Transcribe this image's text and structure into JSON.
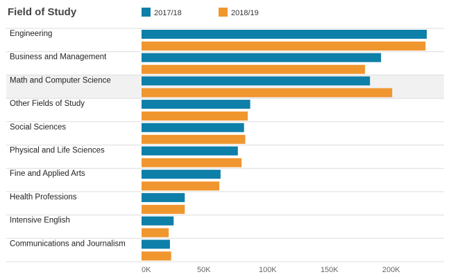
{
  "chart_data": {
    "type": "bar",
    "orientation": "horizontal",
    "title": "Field of Study",
    "categories": [
      "Engineering",
      "Business and Management",
      "Math and Computer Science",
      "Other Fields of Study",
      "Social Sciences",
      "Physical and Life Sciences",
      "Fine and Applied Arts",
      "Health Professions",
      "Intensive English",
      "Communications and Journalism"
    ],
    "series": [
      {
        "name": "2017/18",
        "color": "#0e7fa8",
        "values": [
          231000,
          194000,
          185000,
          88000,
          83000,
          78000,
          64000,
          35000,
          26000,
          23000
        ]
      },
      {
        "name": "2018/19",
        "color": "#f0962f",
        "values": [
          230000,
          181000,
          203000,
          86000,
          84000,
          81000,
          63000,
          35000,
          22000,
          24000
        ]
      }
    ],
    "x_ticks": [
      "0K",
      "50K",
      "100K",
      "150K",
      "200K"
    ],
    "xlim": [
      0,
      245000
    ],
    "legend_position": "top",
    "highlighted_category": "Math and Computer Science"
  }
}
